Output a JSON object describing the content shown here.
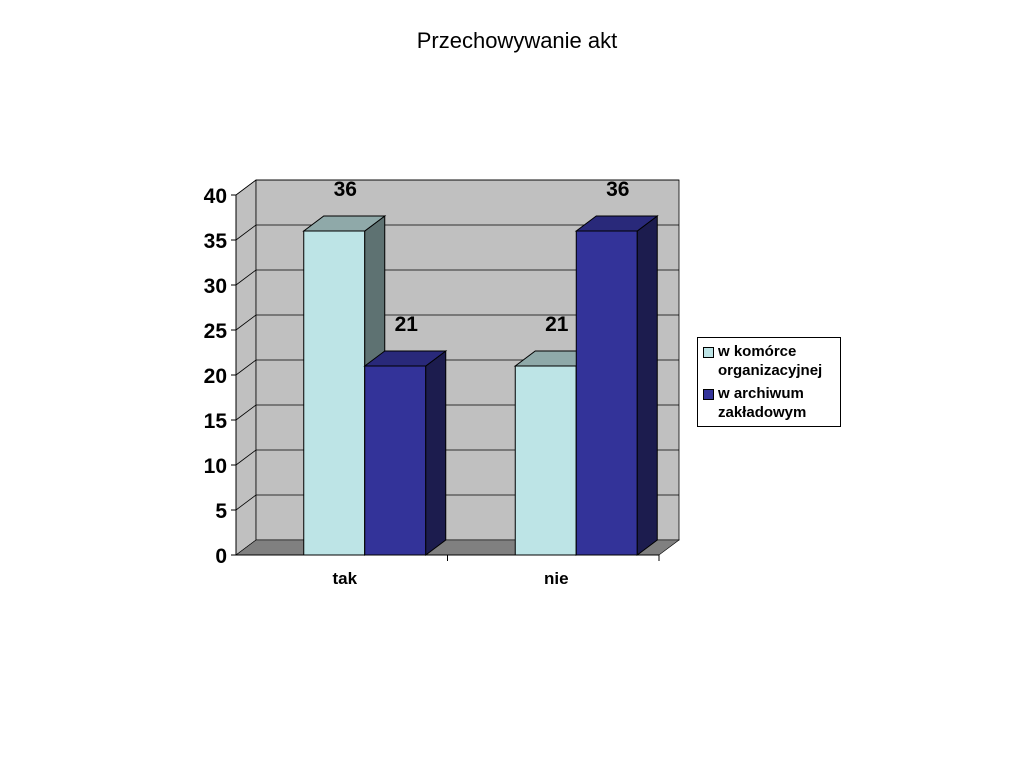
{
  "chart_data": {
    "type": "bar",
    "style": "3d-clustered-column",
    "title": "Przechowywanie akt",
    "categories": [
      "tak",
      "nie"
    ],
    "series": [
      {
        "name": "w komórce organizacyjnej",
        "values": [
          36,
          21
        ],
        "color": "#BDE4E6",
        "side_color": "#5E7272",
        "top_color": "#8FA9A9"
      },
      {
        "name": "w archiwum zakładowym",
        "values": [
          21,
          36
        ],
        "color": "#333399",
        "side_color": "#1C1C4E",
        "top_color": "#29297A"
      }
    ],
    "data_labels": [
      [
        "36",
        "21"
      ],
      [
        "21",
        "36"
      ]
    ],
    "y_ticks": [
      "0",
      "5",
      "10",
      "15",
      "20",
      "25",
      "30",
      "35",
      "40"
    ],
    "ylim": [
      0,
      40
    ],
    "grid": true,
    "legend_position": "right",
    "plot_wall_color": "#C0C0C0",
    "floor_color": "#808080"
  }
}
